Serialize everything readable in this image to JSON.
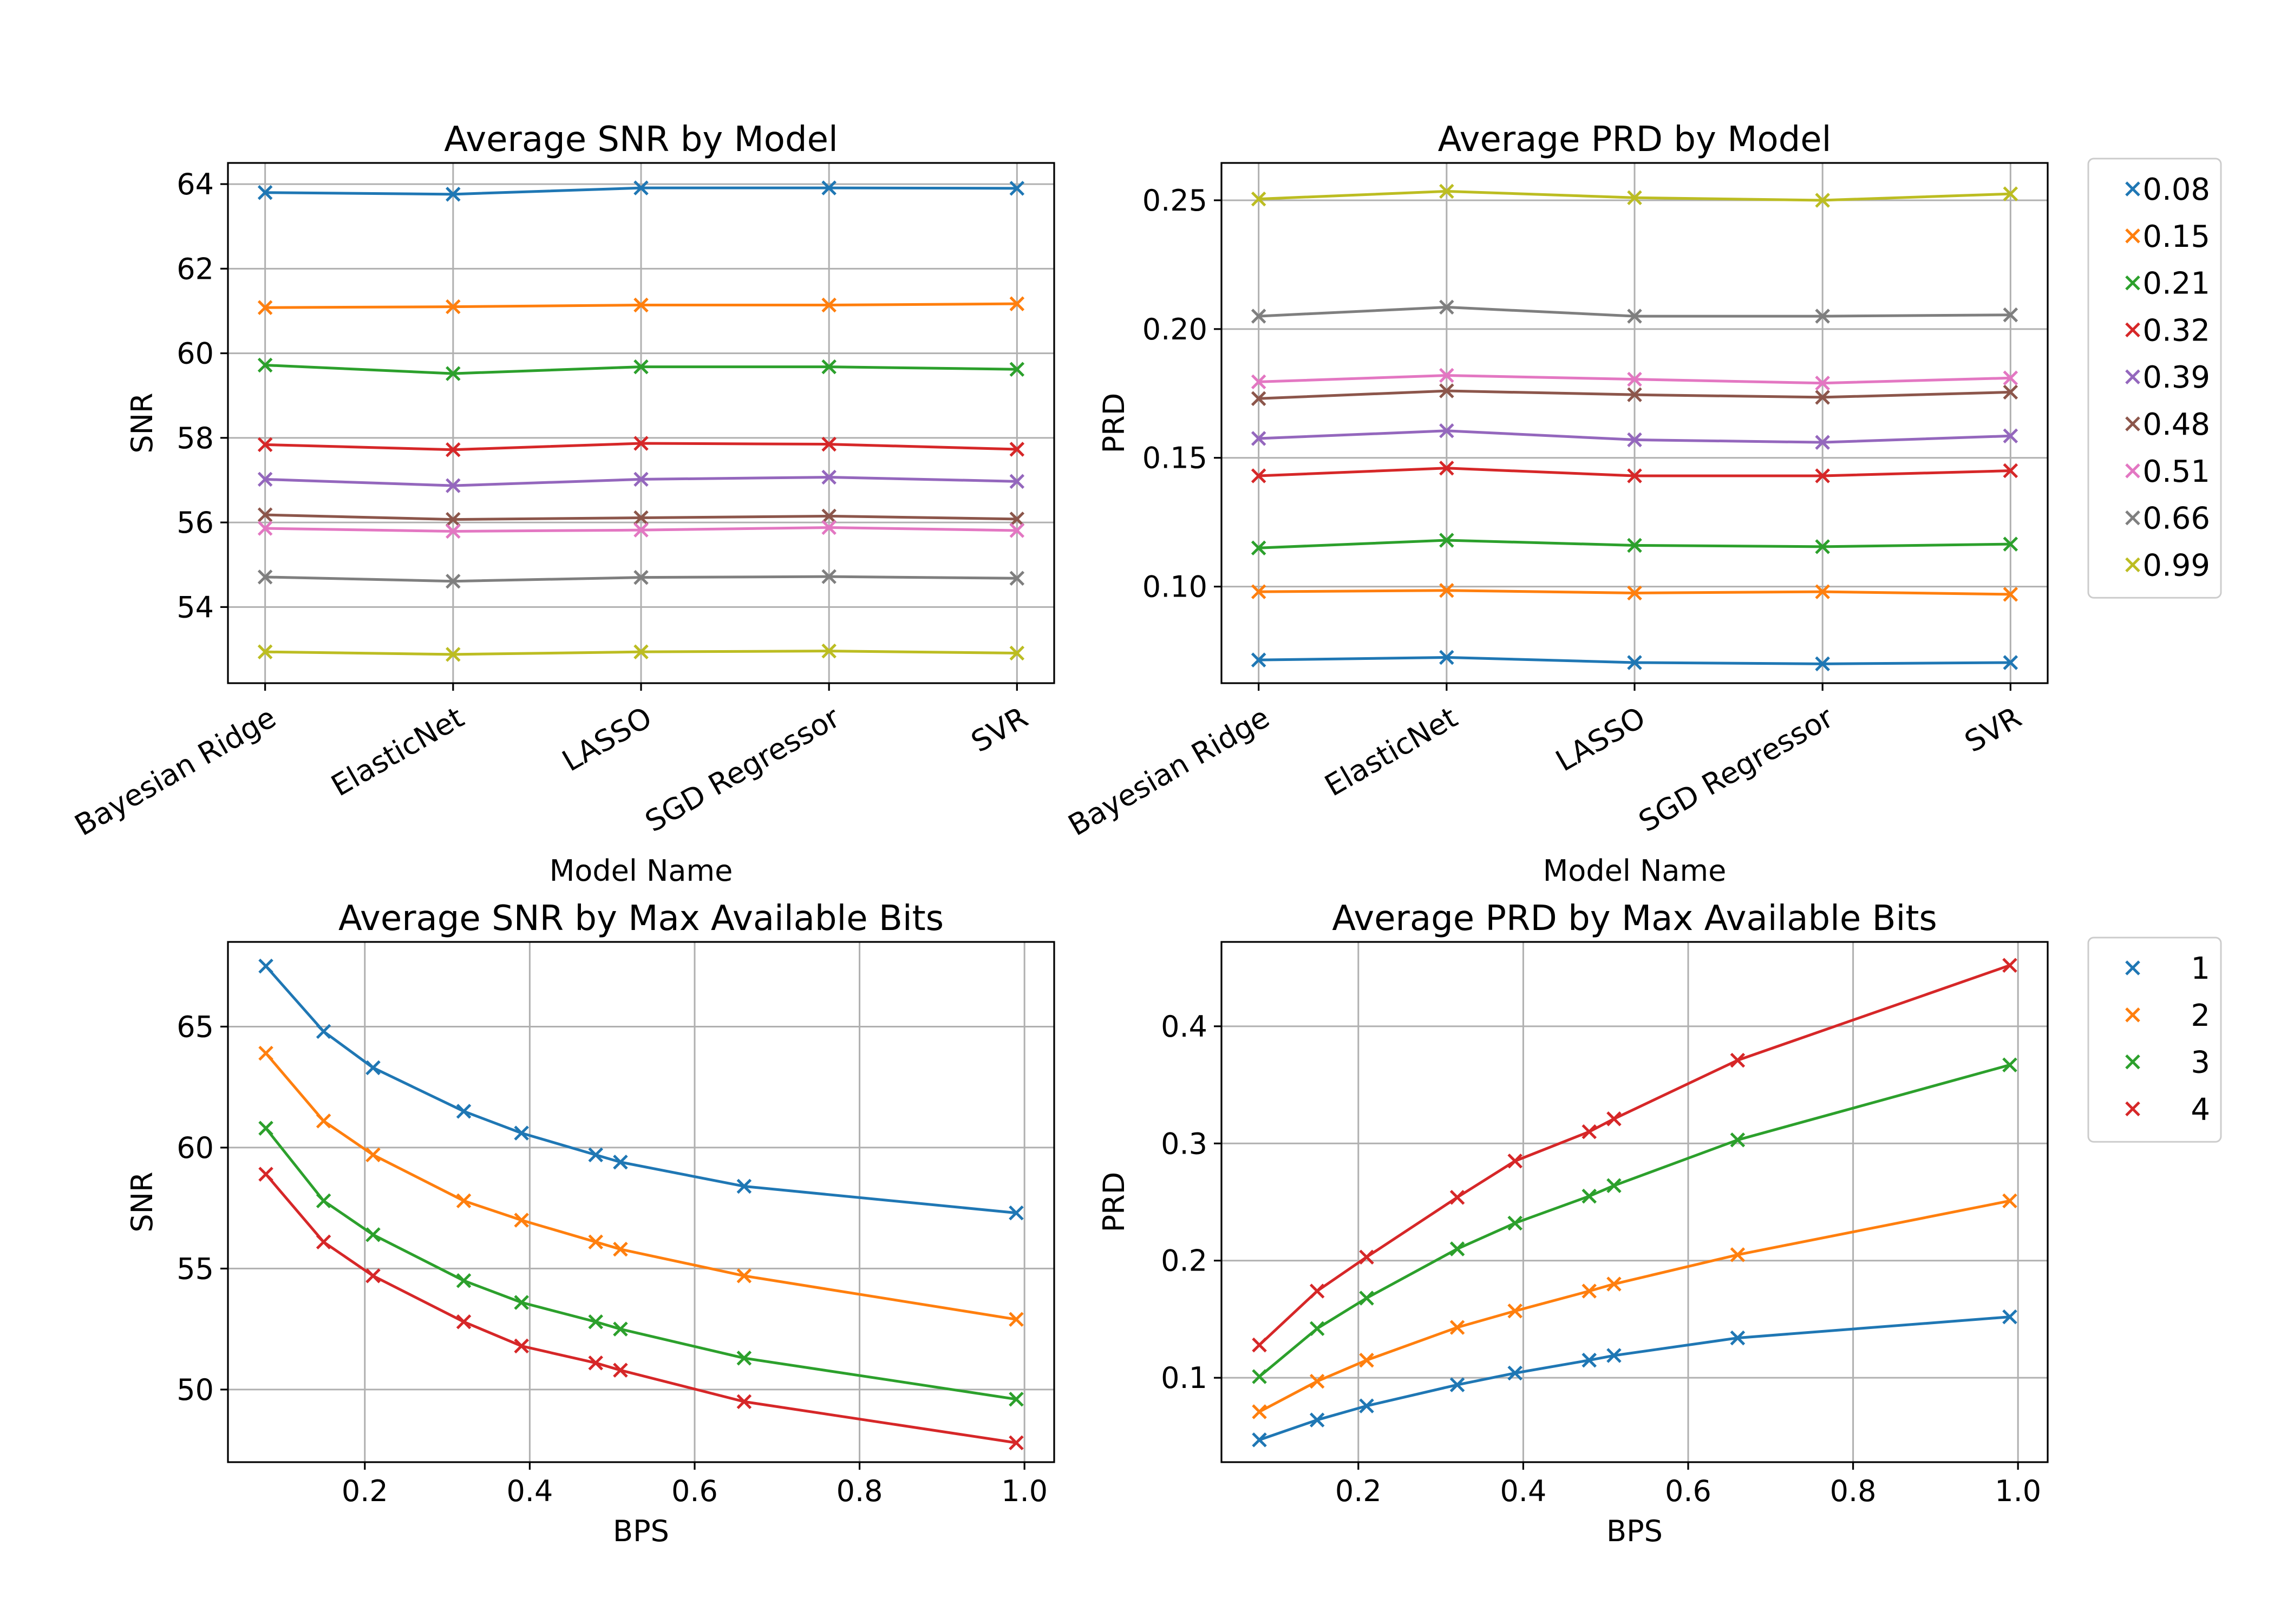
{
  "chart_data": [
    {
      "id": "snr-model",
      "type": "line",
      "title": "Average SNR by Model",
      "xlabel": "Model Name",
      "ylabel": "SNR",
      "categories": [
        "Bayesian Ridge",
        "ElasticNet",
        "LASSO",
        "SGD Regressor",
        "SVR"
      ],
      "ylim": [
        52.2,
        64.5
      ],
      "yticks": [
        54,
        56,
        58,
        60,
        62,
        64
      ],
      "grid": true,
      "marker": "x",
      "series": [
        {
          "name": "0.08",
          "color": "#1f77b4",
          "values": [
            63.8,
            63.76,
            63.91,
            63.91,
            63.9
          ]
        },
        {
          "name": "0.15",
          "color": "#ff7f0e",
          "values": [
            61.08,
            61.1,
            61.14,
            61.14,
            61.17
          ]
        },
        {
          "name": "0.21",
          "color": "#2ca02c",
          "values": [
            59.72,
            59.52,
            59.68,
            59.68,
            59.62
          ]
        },
        {
          "name": "0.32",
          "color": "#d62728",
          "values": [
            57.84,
            57.72,
            57.87,
            57.85,
            57.73
          ]
        },
        {
          "name": "0.39",
          "color": "#9467bd",
          "values": [
            57.02,
            56.87,
            57.02,
            57.07,
            56.97
          ]
        },
        {
          "name": "0.48",
          "color": "#8c564b",
          "values": [
            56.18,
            56.07,
            56.11,
            56.15,
            56.08
          ]
        },
        {
          "name": "0.51",
          "color": "#e377c2",
          "values": [
            55.86,
            55.79,
            55.82,
            55.88,
            55.81
          ]
        },
        {
          "name": "0.66",
          "color": "#7f7f7f",
          "values": [
            54.71,
            54.61,
            54.7,
            54.72,
            54.68
          ]
        },
        {
          "name": "0.99",
          "color": "#bcbd22",
          "values": [
            52.94,
            52.88,
            52.94,
            52.96,
            52.91
          ]
        }
      ]
    },
    {
      "id": "prd-model",
      "type": "line",
      "title": "Average PRD by Model",
      "xlabel": "Model Name",
      "ylabel": "PRD",
      "categories": [
        "Bayesian Ridge",
        "ElasticNet",
        "LASSO",
        "SGD Regressor",
        "SVR"
      ],
      "ylim": [
        0.0625,
        0.2645
      ],
      "yticks": [
        0.1,
        0.15,
        0.2,
        0.25
      ],
      "ytick_labels": [
        "0.10",
        "0.15",
        "0.20",
        "0.25"
      ],
      "grid": true,
      "marker": "x",
      "legend": "outside-right",
      "series": [
        {
          "name": "0.08",
          "color": "#1f77b4",
          "values": [
            0.0715,
            0.0725,
            0.0705,
            0.07,
            0.0705
          ]
        },
        {
          "name": "0.15",
          "color": "#ff7f0e",
          "values": [
            0.098,
            0.0985,
            0.0975,
            0.098,
            0.097
          ]
        },
        {
          "name": "0.21",
          "color": "#2ca02c",
          "values": [
            0.115,
            0.118,
            0.116,
            0.1155,
            0.1165
          ]
        },
        {
          "name": "0.32",
          "color": "#d62728",
          "values": [
            0.143,
            0.146,
            0.143,
            0.143,
            0.145
          ]
        },
        {
          "name": "0.39",
          "color": "#9467bd",
          "values": [
            0.1575,
            0.1605,
            0.157,
            0.156,
            0.1585
          ]
        },
        {
          "name": "0.48",
          "color": "#8c564b",
          "values": [
            0.173,
            0.176,
            0.1745,
            0.1735,
            0.1755
          ]
        },
        {
          "name": "0.51",
          "color": "#e377c2",
          "values": [
            0.1795,
            0.182,
            0.1805,
            0.179,
            0.181
          ]
        },
        {
          "name": "0.66",
          "color": "#7f7f7f",
          "values": [
            0.205,
            0.2085,
            0.205,
            0.205,
            0.2055
          ]
        },
        {
          "name": "0.99",
          "color": "#bcbd22",
          "values": [
            0.2505,
            0.2535,
            0.251,
            0.25,
            0.2525
          ]
        }
      ]
    },
    {
      "id": "snr-bits",
      "type": "line",
      "title": "Average SNR by Max Available Bits",
      "xlabel": "BPS",
      "ylabel": "SNR",
      "x": [
        0.08,
        0.15,
        0.21,
        0.32,
        0.39,
        0.48,
        0.51,
        0.66,
        0.99
      ],
      "xlim": [
        0.034,
        1.036
      ],
      "xticks": [
        0.2,
        0.4,
        0.6,
        0.8,
        1.0
      ],
      "xtick_labels": [
        "0.2",
        "0.4",
        "0.6",
        "0.8",
        "1.0"
      ],
      "ylim": [
        47.0,
        68.5
      ],
      "yticks": [
        50,
        55,
        60,
        65
      ],
      "grid": true,
      "marker": "x",
      "series": [
        {
          "name": "1",
          "color": "#1f77b4",
          "values": [
            67.5,
            64.8,
            63.3,
            61.5,
            60.6,
            59.7,
            59.4,
            58.4,
            57.3
          ]
        },
        {
          "name": "2",
          "color": "#ff7f0e",
          "values": [
            63.9,
            61.1,
            59.7,
            57.8,
            57.0,
            56.1,
            55.8,
            54.7,
            52.9
          ]
        },
        {
          "name": "3",
          "color": "#2ca02c",
          "values": [
            60.8,
            57.8,
            56.4,
            54.5,
            53.6,
            52.8,
            52.5,
            51.3,
            49.6
          ]
        },
        {
          "name": "4",
          "color": "#d62728",
          "values": [
            58.9,
            56.1,
            54.7,
            52.8,
            51.8,
            51.1,
            50.8,
            49.5,
            47.8
          ]
        }
      ]
    },
    {
      "id": "prd-bits",
      "type": "line",
      "title": "Average PRD by Max Available Bits",
      "xlabel": "BPS",
      "ylabel": "PRD",
      "x": [
        0.08,
        0.15,
        0.21,
        0.32,
        0.39,
        0.48,
        0.51,
        0.66,
        0.99
      ],
      "xlim": [
        0.034,
        1.036
      ],
      "xticks": [
        0.2,
        0.4,
        0.6,
        0.8,
        1.0
      ],
      "xtick_labels": [
        "0.2",
        "0.4",
        "0.6",
        "0.8",
        "1.0"
      ],
      "ylim": [
        0.028,
        0.472
      ],
      "yticks": [
        0.1,
        0.2,
        0.3,
        0.4
      ],
      "ytick_labels": [
        "0.1",
        "0.2",
        "0.3",
        "0.4"
      ],
      "grid": true,
      "marker": "x",
      "legend": "outside-right",
      "series": [
        {
          "name": "1",
          "color": "#1f77b4",
          "values": [
            0.047,
            0.064,
            0.076,
            0.094,
            0.104,
            0.115,
            0.119,
            0.134,
            0.152
          ]
        },
        {
          "name": "2",
          "color": "#ff7f0e",
          "values": [
            0.071,
            0.097,
            0.115,
            0.143,
            0.157,
            0.174,
            0.18,
            0.205,
            0.251
          ]
        },
        {
          "name": "3",
          "color": "#2ca02c",
          "values": [
            0.101,
            0.142,
            0.168,
            0.21,
            0.232,
            0.255,
            0.264,
            0.303,
            0.367
          ]
        },
        {
          "name": "4",
          "color": "#d62728",
          "values": [
            0.128,
            0.174,
            0.203,
            0.254,
            0.285,
            0.31,
            0.321,
            0.371,
            0.452
          ]
        }
      ]
    }
  ]
}
